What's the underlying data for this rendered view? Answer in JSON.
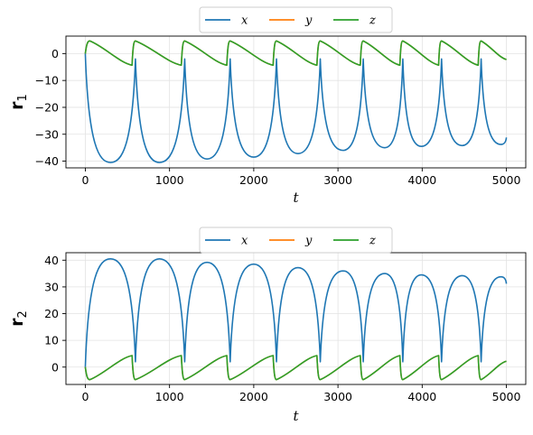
{
  "chart_data": [
    {
      "type": "line",
      "ylabel_main": "r",
      "ylabel_sub": "1",
      "xlabel": "t",
      "xlim": [
        -230,
        5230
      ],
      "ylim": [
        -42.5,
        6.5
      ],
      "xticks": [
        0,
        1000,
        2000,
        3000,
        4000,
        5000
      ],
      "yticks": [
        -40,
        -30,
        -20,
        -10,
        0
      ],
      "grid": true,
      "legend_placement": "top-center, above plot, 3 columns",
      "legend": [
        "x",
        "y",
        "z"
      ],
      "colors": {
        "x": "#1f77b4",
        "y": "#ff7f0e",
        "z": "#2ca02c"
      },
      "y_overlaps_z": true,
      "series": [
        {
          "name": "x",
          "color": "#1f77b4",
          "cycles": [
            [
              0,
              0
            ],
            [
              300,
              -40.5
            ],
            [
              595,
              -2
            ],
            [
              880,
              -40.5
            ],
            [
              1180,
              -2
            ],
            [
              1445,
              -39.2
            ],
            [
              1720,
              -2
            ],
            [
              2000,
              -38.5
            ],
            [
              2270,
              -2
            ],
            [
              2525,
              -37.2
            ],
            [
              2790,
              -2
            ],
            [
              3060,
              -36
            ],
            [
              3300,
              -2
            ],
            [
              3555,
              -35
            ],
            [
              3770,
              -2
            ],
            [
              3990,
              -34.5
            ],
            [
              4230,
              -2
            ],
            [
              4475,
              -34.2
            ],
            [
              4700,
              -2
            ],
            [
              4935,
              -33.8
            ],
            [
              5000,
              -31.2
            ]
          ]
        },
        {
          "name": "y",
          "color": "#ff7f0e",
          "cycles": [
            [
              0,
              0
            ],
            [
              55,
              4.7
            ],
            [
              555,
              -4.3
            ],
            [
              595,
              4.7
            ],
            [
              1140,
              -4.3
            ],
            [
              1180,
              4.7
            ],
            [
              1680,
              -4.3
            ],
            [
              1720,
              4.7
            ],
            [
              2230,
              -4.3
            ],
            [
              2270,
              4.7
            ],
            [
              2750,
              -4.3
            ],
            [
              2790,
              4.7
            ],
            [
              3265,
              -4.3
            ],
            [
              3300,
              4.7
            ],
            [
              3735,
              -4.3
            ],
            [
              3770,
              4.7
            ],
            [
              4195,
              -4.3
            ],
            [
              4230,
              4.7
            ],
            [
              4665,
              -4.3
            ],
            [
              4700,
              4.7
            ],
            [
              5000,
              -2.2
            ]
          ]
        },
        {
          "name": "z",
          "color": "#2ca02c",
          "cycles": [
            [
              0,
              0
            ],
            [
              55,
              4.7
            ],
            [
              555,
              -4.3
            ],
            [
              595,
              4.7
            ],
            [
              1140,
              -4.3
            ],
            [
              1180,
              4.7
            ],
            [
              1680,
              -4.3
            ],
            [
              1720,
              4.7
            ],
            [
              2230,
              -4.3
            ],
            [
              2270,
              4.7
            ],
            [
              2750,
              -4.3
            ],
            [
              2790,
              4.7
            ],
            [
              3265,
              -4.3
            ],
            [
              3300,
              4.7
            ],
            [
              3735,
              -4.3
            ],
            [
              3770,
              4.7
            ],
            [
              4195,
              -4.3
            ],
            [
              4230,
              4.7
            ],
            [
              4665,
              -4.3
            ],
            [
              4700,
              4.7
            ],
            [
              5000,
              -2.2
            ]
          ]
        }
      ]
    },
    {
      "type": "line",
      "ylabel_main": "r",
      "ylabel_sub": "2",
      "xlabel": "t",
      "xlim": [
        -230,
        5230
      ],
      "ylim": [
        -6.5,
        42.8
      ],
      "xticks": [
        0,
        1000,
        2000,
        3000,
        4000,
        5000
      ],
      "yticks": [
        0,
        10,
        20,
        30,
        40
      ],
      "grid": true,
      "legend_placement": "top-center, above plot, 3 columns",
      "legend": [
        "x",
        "y",
        "z"
      ],
      "colors": {
        "x": "#1f77b4",
        "y": "#ff7f0e",
        "z": "#2ca02c"
      },
      "y_overlaps_z": true,
      "series": [
        {
          "name": "x",
          "color": "#1f77b4",
          "cycles": [
            [
              0,
              0
            ],
            [
              300,
              40.5
            ],
            [
              595,
              2
            ],
            [
              880,
              40.5
            ],
            [
              1180,
              2
            ],
            [
              1445,
              39.2
            ],
            [
              1720,
              2
            ],
            [
              2000,
              38.5
            ],
            [
              2270,
              2
            ],
            [
              2525,
              37.2
            ],
            [
              2790,
              2
            ],
            [
              3060,
              36
            ],
            [
              3300,
              2
            ],
            [
              3555,
              35
            ],
            [
              3770,
              2
            ],
            [
              3990,
              34.5
            ],
            [
              4230,
              2
            ],
            [
              4475,
              34.2
            ],
            [
              4700,
              2
            ],
            [
              4935,
              33.8
            ],
            [
              5000,
              31.2
            ]
          ]
        },
        {
          "name": "y",
          "color": "#ff7f0e",
          "cycles": [
            [
              0,
              0
            ],
            [
              55,
              -4.7
            ],
            [
              555,
              4.3
            ],
            [
              595,
              -4.7
            ],
            [
              1140,
              4.3
            ],
            [
              1180,
              -4.7
            ],
            [
              1680,
              4.3
            ],
            [
              1720,
              -4.7
            ],
            [
              2230,
              4.3
            ],
            [
              2270,
              -4.7
            ],
            [
              2750,
              4.3
            ],
            [
              2790,
              -4.7
            ],
            [
              3265,
              4.3
            ],
            [
              3300,
              -4.7
            ],
            [
              3735,
              4.3
            ],
            [
              3770,
              -4.7
            ],
            [
              4195,
              4.3
            ],
            [
              4230,
              -4.7
            ],
            [
              4665,
              4.3
            ],
            [
              4700,
              -4.7
            ],
            [
              5000,
              2.2
            ]
          ]
        },
        {
          "name": "z",
          "color": "#2ca02c",
          "cycles": [
            [
              0,
              0
            ],
            [
              55,
              -4.7
            ],
            [
              555,
              4.3
            ],
            [
              595,
              -4.7
            ],
            [
              1140,
              4.3
            ],
            [
              1180,
              -4.7
            ],
            [
              1680,
              4.3
            ],
            [
              1720,
              -4.7
            ],
            [
              2230,
              4.3
            ],
            [
              2270,
              -4.7
            ],
            [
              2750,
              4.3
            ],
            [
              2790,
              -4.7
            ],
            [
              3265,
              4.3
            ],
            [
              3300,
              -4.7
            ],
            [
              3735,
              4.3
            ],
            [
              3770,
              -4.7
            ],
            [
              4195,
              4.3
            ],
            [
              4230,
              -4.7
            ],
            [
              4665,
              4.3
            ],
            [
              4700,
              -4.7
            ],
            [
              5000,
              2.2
            ]
          ]
        }
      ]
    }
  ]
}
